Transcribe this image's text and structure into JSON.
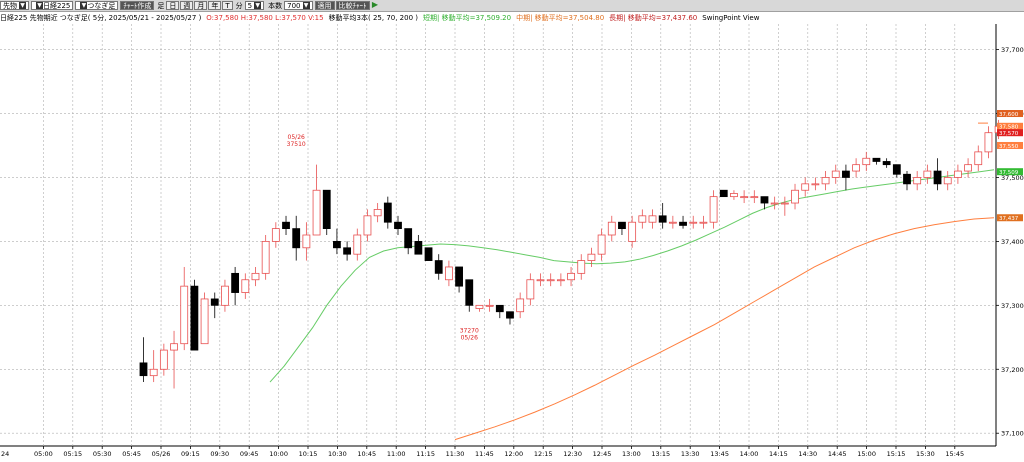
{
  "toolbar": {
    "market_select": "先物",
    "index_select": "日経225",
    "chart_type_select": "つなぎ足",
    "chart_style_button": "ﾁｬｰﾄ作成",
    "period_label": "足",
    "period_buttons": [
      "日",
      "週",
      "月",
      "年",
      "T"
    ],
    "minute_label": "分",
    "minute_value": "5",
    "bars_label": "本数",
    "bars_value": "700",
    "apply_button": "適用",
    "compare_button": "比較ﾁｬｰﾄ",
    "flag_icon": "flag-icon"
  },
  "info": {
    "instrument": "日経225 先物期近 つなぎ足( 5分, 2025/05/21 - 2025/05/27 )",
    "ohlc": "O:37,580 H:37,580 L:37,570 V:15",
    "ma_label": "移動平均3本( 25, 70, 200 )",
    "ma_short": "短期| 移動平均=37,509.20",
    "ma_mid": "中期| 移動平均=37,504.80",
    "ma_long": "長期| 移動平均=37,437.60",
    "plugin": "SwingPoint View"
  },
  "colors": {
    "up_candle": "#e85050",
    "down_candle": "#000000",
    "ma_short": "#66cc66",
    "ma_long": "#ff7f3f",
    "grid": "#b0b0b0",
    "label_red": "#dd2222"
  },
  "chart_data": {
    "type": "candlestick",
    "y_axis": {
      "ticks": [
        37100,
        37200,
        37300,
        37400,
        37500,
        37600,
        37700
      ],
      "tick_labels": [
        "37,100",
        "37,200",
        "37,300",
        "37,400",
        "37,500",
        "37,600",
        "37,700"
      ],
      "range": [
        37080,
        37740
      ]
    },
    "x_axis": {
      "tick_labels": [
        "24",
        "05:00",
        "05:15",
        "05:30",
        "05:45",
        "05/26",
        "09:15",
        "09:30",
        "09:45",
        "10:00",
        "10:15",
        "10:30",
        "10:45",
        "11:00",
        "11:15",
        "11:30",
        "11:45",
        "12:00",
        "12:15",
        "12:30",
        "12:45",
        "13:00",
        "13:15",
        "13:30",
        "13:45",
        "14:00",
        "14:15",
        "14:30",
        "14:45",
        "15:00",
        "15:15",
        "15:30",
        "15:45"
      ],
      "grid": true
    },
    "price_tags": [
      {
        "value": 37550,
        "label": "37,550",
        "color": "#ff7f3f",
        "text_color": "#ffffff"
      },
      {
        "value": 37580,
        "label": "37,580",
        "color": "#ff7f3f",
        "text_color": "#ffffff"
      },
      {
        "value": 37600,
        "label": "37,600",
        "color": "#e06020",
        "text_color": "#ffffff"
      },
      {
        "value": 37509,
        "label": "37,509",
        "color": "#33bb33",
        "text_color": "#ffffff"
      },
      {
        "value": 37437,
        "label": "37,437",
        "color": "#e07020",
        "text_color": "#ffffff"
      },
      {
        "value": 37570,
        "label": "37,570",
        "color": "#e02020",
        "text_color": "#ffffff"
      }
    ],
    "annotations": [
      {
        "slot": 15,
        "lines": [
          "05/26",
          "37510"
        ],
        "position": "above",
        "price": 37510
      },
      {
        "slot": 32,
        "lines": [
          "37270",
          "05/26"
        ],
        "position": "below",
        "price": 37270
      }
    ],
    "candles": [
      [
        0,
        37210,
        37250,
        37180,
        37190
      ],
      [
        1,
        37190,
        37230,
        37180,
        37200
      ],
      [
        2,
        37200,
        37240,
        37190,
        37230
      ],
      [
        3,
        37230,
        37260,
        37170,
        37240
      ],
      [
        4,
        37240,
        37360,
        37230,
        37330
      ],
      [
        5,
        37330,
        37340,
        37230,
        37230
      ],
      [
        6,
        37240,
        37320,
        37240,
        37310
      ],
      [
        7,
        37310,
        37320,
        37280,
        37300
      ],
      [
        8,
        37300,
        37340,
        37290,
        37330
      ],
      [
        9,
        37350,
        37360,
        37300,
        37320
      ],
      [
        10,
        37320,
        37350,
        37310,
        37340
      ],
      [
        11,
        37340,
        37360,
        37330,
        37350
      ],
      [
        12,
        37350,
        37410,
        37340,
        37400
      ],
      [
        13,
        37400,
        37430,
        37390,
        37420
      ],
      [
        14,
        37430,
        37440,
        37410,
        37420
      ],
      [
        15,
        37420,
        37440,
        37370,
        37390
      ],
      [
        16,
        37390,
        37430,
        37370,
        37410
      ],
      [
        17,
        37410,
        37520,
        37410,
        37480
      ],
      [
        18,
        37480,
        37480,
        37410,
        37420
      ],
      [
        19,
        37400,
        37420,
        37380,
        37390
      ],
      [
        20,
        37390,
        37400,
        37370,
        37380
      ],
      [
        21,
        37380,
        37420,
        37370,
        37410
      ],
      [
        22,
        37410,
        37450,
        37400,
        37440
      ],
      [
        23,
        37440,
        37460,
        37430,
        37450
      ],
      [
        24,
        37460,
        37470,
        37420,
        37430
      ],
      [
        25,
        37430,
        37440,
        37410,
        37420
      ],
      [
        26,
        37420,
        37420,
        37380,
        37390
      ],
      [
        27,
        37400,
        37410,
        37380,
        37380
      ],
      [
        28,
        37390,
        37390,
        37370,
        37370
      ],
      [
        29,
        37370,
        37380,
        37340,
        37350
      ],
      [
        30,
        37340,
        37370,
        37330,
        37360
      ],
      [
        31,
        37360,
        37360,
        37320,
        37330
      ],
      [
        32,
        37340,
        37340,
        37290,
        37300
      ],
      [
        33,
        37295,
        37300,
        37290,
        37300
      ],
      [
        34,
        37300,
        37310,
        37290,
        37300
      ],
      [
        35,
        37300,
        37300,
        37280,
        37290
      ],
      [
        36,
        37290,
        37290,
        37270,
        37280
      ],
      [
        37,
        37290,
        37320,
        37280,
        37310
      ],
      [
        38,
        37310,
        37350,
        37300,
        37340
      ],
      [
        39,
        37340,
        37350,
        37330,
        37340
      ],
      [
        40,
        37340,
        37350,
        37330,
        37340
      ],
      [
        41,
        37340,
        37350,
        37330,
        37340
      ],
      [
        42,
        37340,
        37360,
        37330,
        37350
      ],
      [
        43,
        37350,
        37380,
        37340,
        37370
      ],
      [
        44,
        37370,
        37390,
        37360,
        37380
      ],
      [
        45,
        37380,
        37420,
        37370,
        37410
      ],
      [
        46,
        37410,
        37440,
        37400,
        37430
      ],
      [
        47,
        37430,
        37430,
        37410,
        37420
      ],
      [
        48,
        37400,
        37440,
        37390,
        37430
      ],
      [
        49,
        37430,
        37450,
        37420,
        37440
      ],
      [
        50,
        37430,
        37450,
        37420,
        37440
      ],
      [
        51,
        37440,
        37460,
        37420,
        37430
      ],
      [
        52,
        37430,
        37440,
        37420,
        37430
      ],
      [
        53,
        37430,
        37440,
        37420,
        37425
      ],
      [
        54,
        37430,
        37440,
        37420,
        37430
      ],
      [
        55,
        37430,
        37440,
        37420,
        37430
      ],
      [
        56,
        37430,
        37480,
        37420,
        37470
      ],
      [
        57,
        37480,
        37480,
        37470,
        37470
      ],
      [
        58,
        37470,
        37480,
        37465,
        37475
      ],
      [
        59,
        37470,
        37480,
        37460,
        37470
      ],
      [
        60,
        37470,
        37480,
        37460,
        37470
      ],
      [
        61,
        37470,
        37470,
        37450,
        37460
      ],
      [
        62,
        37460,
        37470,
        37450,
        37460
      ],
      [
        63,
        37460,
        37470,
        37440,
        37460
      ],
      [
        64,
        37460,
        37490,
        37450,
        37480
      ],
      [
        65,
        37480,
        37500,
        37470,
        37490
      ],
      [
        66,
        37490,
        37500,
        37480,
        37490
      ],
      [
        67,
        37490,
        37510,
        37480,
        37500
      ],
      [
        68,
        37500,
        37520,
        37490,
        37510
      ],
      [
        69,
        37510,
        37520,
        37480,
        37500
      ],
      [
        70,
        37510,
        37530,
        37500,
        37520
      ],
      [
        71,
        37520,
        37540,
        37510,
        37530
      ],
      [
        72,
        37530,
        37530,
        37520,
        37525
      ],
      [
        73,
        37525,
        37530,
        37515,
        37520
      ],
      [
        74,
        37520,
        37520,
        37500,
        37505
      ],
      [
        75,
        37505,
        37510,
        37480,
        37490
      ],
      [
        76,
        37490,
        37510,
        37480,
        37500
      ],
      [
        77,
        37500,
        37520,
        37490,
        37510
      ],
      [
        78,
        37510,
        37530,
        37480,
        37490
      ],
      [
        79,
        37490,
        37510,
        37480,
        37500
      ],
      [
        80,
        37500,
        37520,
        37490,
        37510
      ],
      [
        81,
        37510,
        37530,
        37500,
        37520
      ],
      [
        82,
        37520,
        37550,
        37510,
        37540
      ],
      [
        83,
        37540,
        37580,
        37530,
        37570
      ],
      [
        84,
        37570,
        37590,
        37560,
        37580
      ],
      [
        85,
        37580,
        37580,
        37570,
        37570
      ]
    ],
    "ma_short": [
      37180,
      37205,
      37235,
      37265,
      37300,
      37330,
      37355,
      37375,
      37385,
      37390,
      37392,
      37394,
      37396,
      37395,
      37393,
      37390,
      37387,
      37383,
      37379,
      37375,
      37370,
      37368,
      37366,
      37365,
      37366,
      37368,
      37372,
      37378,
      37385,
      37393,
      37402,
      37412,
      37422,
      37433,
      37444,
      37453,
      37460,
      37466,
      37470,
      37474,
      37478,
      37482,
      37485,
      37488,
      37491,
      37494,
      37497,
      37500,
      37503,
      37506,
      37509,
      37512
    ],
    "ma_long": [
      37090,
      37100,
      37110,
      37121,
      37133,
      37146,
      37160,
      37175,
      37191,
      37207,
      37222,
      37238,
      37254,
      37270,
      37288,
      37306,
      37324,
      37342,
      37360,
      37375,
      37390,
      37402,
      37412,
      37420,
      37426,
      37431,
      37435,
      37437
    ]
  }
}
